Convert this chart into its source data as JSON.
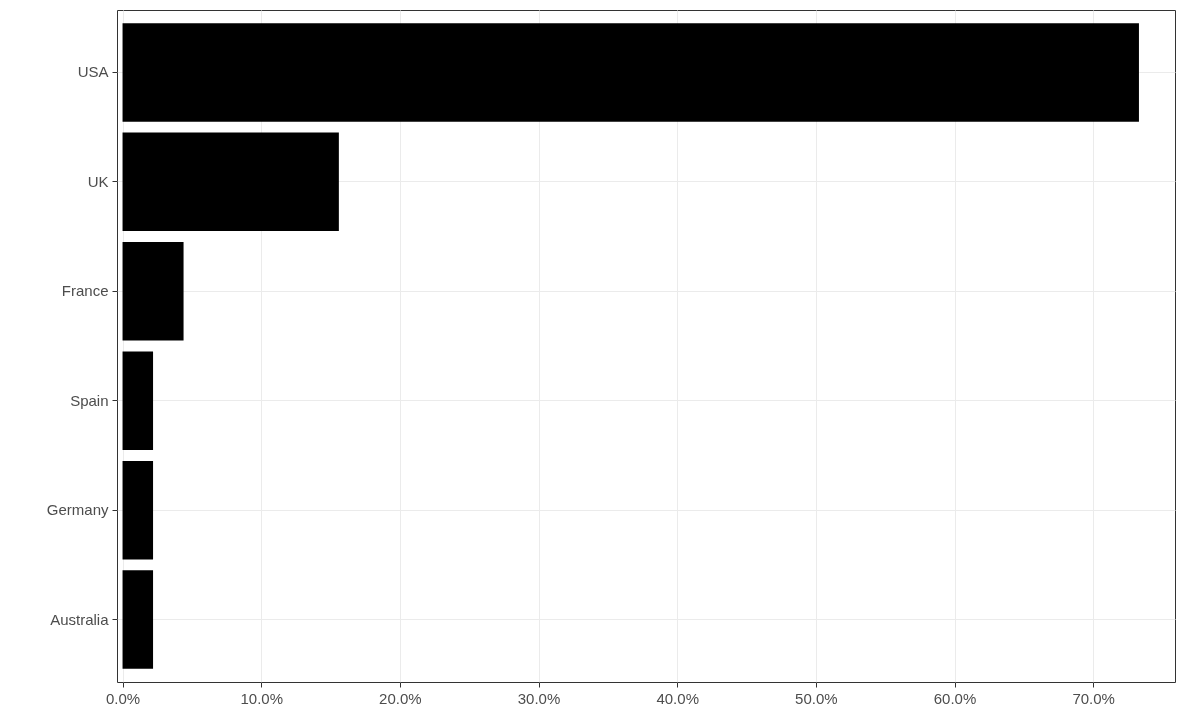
{
  "chart_data": {
    "type": "bar",
    "orientation": "horizontal",
    "categories": [
      "USA",
      "UK",
      "France",
      "Spain",
      "Germany",
      "Australia"
    ],
    "values": [
      73.3,
      15.6,
      4.4,
      2.2,
      2.2,
      2.2
    ],
    "color": "#000000",
    "xlim": [
      -0.4,
      75.9
    ],
    "xticks": [
      {
        "value": 0,
        "label": "0.0%"
      },
      {
        "value": 10,
        "label": "10.0%"
      },
      {
        "value": 20,
        "label": "20.0%"
      },
      {
        "value": 30,
        "label": "30.0%"
      },
      {
        "value": 40,
        "label": "40.0%"
      },
      {
        "value": 50,
        "label": "50.0%"
      },
      {
        "value": 60,
        "label": "60.0%"
      },
      {
        "value": 70,
        "label": "70.0%"
      }
    ],
    "grid": true
  }
}
